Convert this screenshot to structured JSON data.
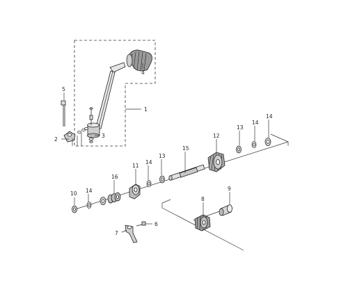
{
  "diagram": {
    "callouts": {
      "c1": "1",
      "c2": "2",
      "c3": "3",
      "c4": "4",
      "c5": "5",
      "c6": "6",
      "c7": "7",
      "c8": "8",
      "c9": "9",
      "c10": "10",
      "c11": "11",
      "c12": "12",
      "c13a": "13",
      "c13b": "13",
      "c14a": "14",
      "c14b": "14",
      "c14c": "14",
      "c14d": "14",
      "c15": "15",
      "c16": "16"
    }
  }
}
